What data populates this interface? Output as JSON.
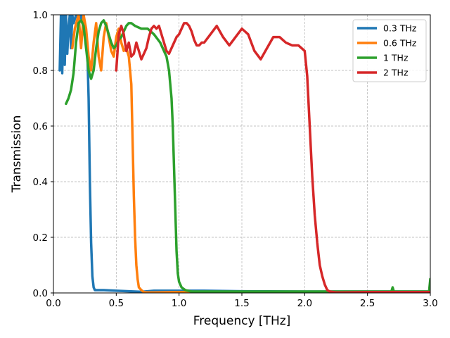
{
  "chart_data": {
    "type": "line",
    "title": "",
    "xlabel": "Frequency [THz]",
    "ylabel": "Transmission",
    "xlim": [
      0,
      3.0
    ],
    "ylim": [
      0,
      1.0
    ],
    "xticks": [
      0.0,
      0.5,
      1.0,
      1.5,
      2.0,
      2.5,
      3.0
    ],
    "xtick_labels": [
      "0.0",
      "0.5",
      "1.0",
      "1.5",
      "2.0",
      "2.5",
      "3.0"
    ],
    "yticks": [
      0.0,
      0.2,
      0.4,
      0.6,
      0.8,
      1.0
    ],
    "ytick_labels": [
      "0.0",
      "0.2",
      "0.4",
      "0.6",
      "0.8",
      "1.0"
    ],
    "grid": true,
    "legend_position": "top-right",
    "series": [
      {
        "name": "0.3 THz",
        "color": "#1f77b4",
        "x": [
          0.05,
          0.06,
          0.07,
          0.08,
          0.09,
          0.1,
          0.11,
          0.12,
          0.13,
          0.14,
          0.15,
          0.16,
          0.18,
          0.2,
          0.22,
          0.24,
          0.26,
          0.27,
          0.28,
          0.29,
          0.3,
          0.31,
          0.32,
          0.33,
          0.35,
          0.4,
          0.5,
          0.6,
          0.7,
          0.8,
          1.0,
          1.2,
          1.5,
          2.0,
          2.5,
          3.0
        ],
        "y": [
          0.8,
          1.0,
          0.79,
          1.0,
          0.82,
          1.0,
          0.86,
          0.95,
          1.0,
          0.88,
          1.0,
          0.97,
          1.0,
          0.98,
          1.0,
          0.95,
          0.9,
          0.87,
          0.7,
          0.4,
          0.18,
          0.06,
          0.02,
          0.01,
          0.01,
          0.01,
          0.008,
          0.006,
          0.004,
          0.008,
          0.008,
          0.008,
          0.006,
          0.005,
          0.005,
          0.005
        ]
      },
      {
        "name": "0.6 THz",
        "color": "#ff7f0e",
        "x": [
          0.15,
          0.17,
          0.2,
          0.22,
          0.24,
          0.26,
          0.28,
          0.3,
          0.32,
          0.34,
          0.36,
          0.38,
          0.4,
          0.42,
          0.44,
          0.46,
          0.48,
          0.5,
          0.52,
          0.54,
          0.56,
          0.58,
          0.6,
          0.62,
          0.63,
          0.64,
          0.65,
          0.66,
          0.67,
          0.68,
          0.7,
          0.72,
          0.75,
          0.8,
          1.0,
          1.5,
          2.0,
          2.5,
          3.0
        ],
        "y": [
          0.88,
          0.95,
          1.0,
          0.88,
          1.0,
          0.95,
          0.85,
          0.8,
          0.9,
          0.97,
          0.85,
          0.8,
          0.92,
          0.97,
          0.92,
          0.87,
          0.85,
          0.92,
          0.95,
          0.9,
          0.87,
          0.88,
          0.85,
          0.75,
          0.55,
          0.35,
          0.2,
          0.1,
          0.05,
          0.02,
          0.01,
          0.003,
          0.002,
          0.002,
          0.003,
          0.003,
          0.003,
          0.003,
          0.003
        ]
      },
      {
        "name": "1 THz",
        "color": "#2ca02c",
        "x": [
          0.1,
          0.12,
          0.14,
          0.16,
          0.18,
          0.2,
          0.22,
          0.24,
          0.26,
          0.28,
          0.3,
          0.32,
          0.34,
          0.36,
          0.38,
          0.4,
          0.42,
          0.44,
          0.46,
          0.48,
          0.5,
          0.52,
          0.54,
          0.56,
          0.58,
          0.6,
          0.62,
          0.65,
          0.7,
          0.75,
          0.8,
          0.85,
          0.88,
          0.9,
          0.92,
          0.94,
          0.95,
          0.96,
          0.97,
          0.98,
          0.99,
          1.0,
          1.02,
          1.05,
          1.1,
          1.5,
          2.0,
          2.5,
          2.69,
          2.7,
          2.71,
          2.9,
          2.99,
          3.0
        ],
        "y": [
          0.68,
          0.7,
          0.73,
          0.79,
          0.9,
          0.97,
          0.98,
          0.96,
          0.88,
          0.8,
          0.77,
          0.8,
          0.88,
          0.94,
          0.97,
          0.98,
          0.96,
          0.93,
          0.9,
          0.88,
          0.89,
          0.91,
          0.92,
          0.94,
          0.96,
          0.97,
          0.97,
          0.96,
          0.95,
          0.95,
          0.93,
          0.9,
          0.87,
          0.85,
          0.8,
          0.7,
          0.6,
          0.45,
          0.3,
          0.15,
          0.07,
          0.04,
          0.02,
          0.01,
          0.005,
          0.005,
          0.005,
          0.005,
          0.005,
          0.02,
          0.005,
          0.005,
          0.005,
          0.05
        ]
      },
      {
        "name": "2 THz",
        "color": "#d62728",
        "x": [
          0.5,
          0.52,
          0.54,
          0.56,
          0.58,
          0.6,
          0.62,
          0.64,
          0.66,
          0.68,
          0.7,
          0.72,
          0.74,
          0.76,
          0.78,
          0.8,
          0.82,
          0.84,
          0.86,
          0.88,
          0.9,
          0.92,
          0.94,
          0.96,
          0.98,
          1.0,
          1.02,
          1.04,
          1.06,
          1.08,
          1.1,
          1.12,
          1.14,
          1.16,
          1.18,
          1.2,
          1.25,
          1.3,
          1.35,
          1.4,
          1.45,
          1.5,
          1.55,
          1.6,
          1.65,
          1.7,
          1.75,
          1.8,
          1.85,
          1.9,
          1.95,
          2.0,
          2.02,
          2.04,
          2.06,
          2.08,
          2.1,
          2.12,
          2.14,
          2.16,
          2.18,
          2.2,
          2.25,
          2.3,
          2.5,
          2.7,
          3.0
        ],
        "y": [
          0.8,
          0.93,
          0.96,
          0.93,
          0.87,
          0.9,
          0.85,
          0.86,
          0.9,
          0.87,
          0.84,
          0.86,
          0.88,
          0.92,
          0.95,
          0.96,
          0.95,
          0.96,
          0.93,
          0.9,
          0.87,
          0.86,
          0.88,
          0.9,
          0.92,
          0.93,
          0.95,
          0.97,
          0.97,
          0.96,
          0.94,
          0.91,
          0.89,
          0.89,
          0.9,
          0.9,
          0.93,
          0.96,
          0.92,
          0.89,
          0.92,
          0.95,
          0.93,
          0.87,
          0.84,
          0.88,
          0.92,
          0.92,
          0.9,
          0.89,
          0.89,
          0.87,
          0.78,
          0.6,
          0.42,
          0.28,
          0.18,
          0.1,
          0.06,
          0.03,
          0.01,
          0.005,
          0.002,
          0.002,
          0.003,
          0.003,
          0.003
        ]
      }
    ]
  }
}
